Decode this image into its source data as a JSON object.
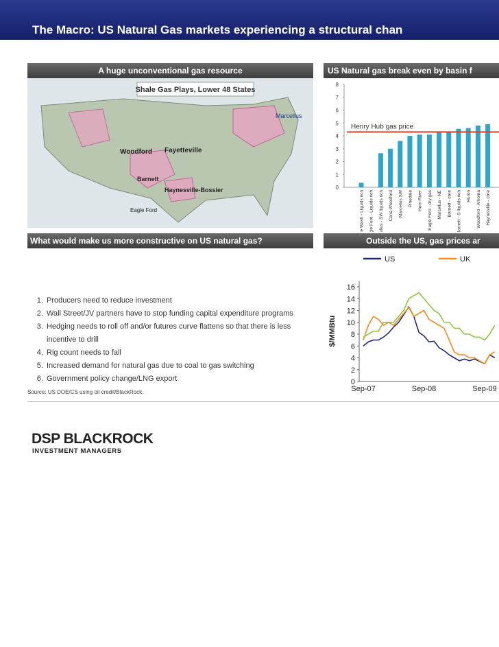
{
  "header": {
    "title": "The Macro: US Natural Gas markets experiencing a structural chan"
  },
  "map_panel": {
    "heading": "A huge unconventional gas resource",
    "map_title": "Shale Gas Plays, Lower 48 States",
    "labels": [
      "Marcellus",
      "Woodford",
      "Fayetteville",
      "Barnett",
      "Haynesville-Bossier",
      "Eagle Ford"
    ]
  },
  "list_panel": {
    "heading": "What would make us more constructive on US natural gas?",
    "items": [
      "Producers need to reduce investment",
      "Wall Street/JV partners have to stop funding capital expenditure programs",
      "Hedging needs to roll off and/or futures curve flattens so that there is less incentive to drill",
      "Rig count needs to fall",
      "Increased demand for natural gas due to coal to gas switching",
      "Government policy change/LNG export"
    ],
    "source": "Source: US DOE/CS using oil credit/BlackRock."
  },
  "footer": {
    "logo": "DSP BLACKROCK",
    "logo_sub": "INVESTMENT MANAGERS"
  },
  "chart_data": [
    {
      "type": "bar",
      "title": "US Natural gas break even by basin f",
      "categories": [
        "Granite Wash - Liquids rich",
        "Eagle Ford - Liquids rich",
        "Marcellus - SW liquids rich",
        "Cana Woodford",
        "Marcellus SW",
        "Pinedale",
        "Horn River",
        "Eagle Ford - dry gas",
        "Marcellus - NE",
        "Barnett - core",
        "Barnett - S liquids rich",
        "Huron",
        "Woodford - Arkoma",
        "Haynesville - core"
      ],
      "values": [
        0.35,
        0,
        2.65,
        3.0,
        3.6,
        4.0,
        4.1,
        4.1,
        4.3,
        4.3,
        4.55,
        4.6,
        4.8,
        4.9
      ],
      "color": "#2ea6c9",
      "ylim": [
        0,
        8
      ],
      "yticks": [
        0,
        1,
        2,
        3,
        4,
        5,
        6,
        7,
        8
      ],
      "reference_line": {
        "label": "Henry Hub gas price",
        "value": 4.3,
        "color": "#e0402a"
      }
    },
    {
      "type": "line",
      "title": "Outside the US, gas prices ar",
      "y_label": "$/MMBtu",
      "categories": [
        "Sep-07",
        null,
        null,
        null,
        null,
        null,
        null,
        null,
        null,
        null,
        null,
        null,
        "Sep-08",
        null,
        null,
        null,
        null,
        null,
        null,
        null,
        null,
        null,
        null,
        null,
        "Sep-09",
        null,
        null
      ],
      "series": [
        {
          "name": "US",
          "color": "#1f2a6e",
          "values": [
            6.0,
            6.7,
            7.0,
            7.0,
            7.5,
            8.2,
            9.2,
            10.0,
            11.3,
            12.6,
            11.0,
            8.3,
            7.7,
            6.7,
            6.8,
            5.7,
            5.2,
            4.5,
            4.0,
            3.5,
            3.8,
            3.5,
            3.8,
            3.4,
            3.0,
            4.5,
            4.0
          ]
        },
        {
          "name": "UK",
          "color": "#f28a1e",
          "values": [
            7.0,
            9.5,
            11.0,
            10.5,
            9.5,
            10.0,
            9.5,
            10.5,
            11.5,
            12.5,
            11.0,
            11.5,
            12.0,
            10.5,
            10.0,
            9.5,
            9.0,
            7.0,
            5.0,
            4.5,
            4.5,
            4.0,
            4.0,
            3.5,
            3.0,
            4.5,
            5.0
          ]
        },
        {
          "color": "#8cc63f",
          "values": [
            7.5,
            8.0,
            8.5,
            8.5,
            10.0,
            10.0,
            10.0,
            11.0,
            12.0,
            14.0,
            14.5,
            15.0,
            14.0,
            13.0,
            12.0,
            11.5,
            10.0,
            10.0,
            9.0,
            9.0,
            8.0,
            8.0,
            7.5,
            7.5,
            7.0,
            8.0,
            9.5
          ]
        }
      ],
      "ylim": [
        0,
        17
      ],
      "yticks": [
        0,
        2,
        4,
        6,
        8,
        10,
        12,
        14,
        16
      ]
    }
  ]
}
